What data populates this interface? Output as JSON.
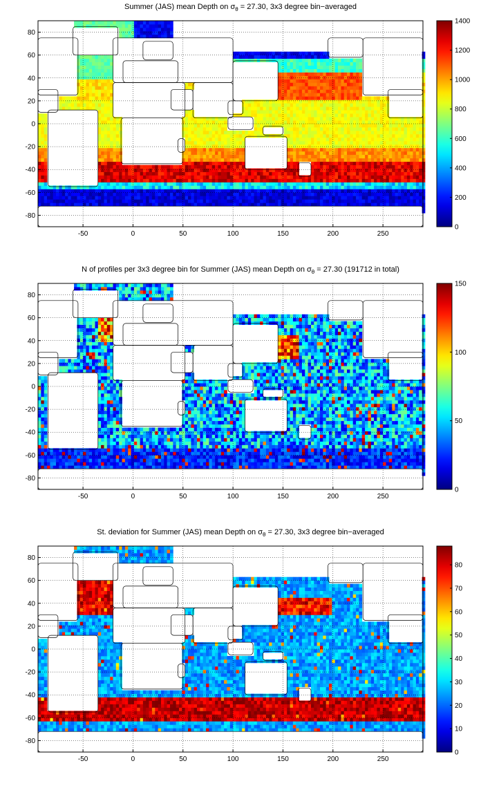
{
  "chart_data": [
    {
      "type": "heatmap",
      "title_prefix": "Summer (JAS) mean Depth on σ",
      "title_sub": "θ",
      "title_suffix": " = 27.30, 3x3 degree bin−averaged",
      "xlim": [
        -95,
        290
      ],
      "ylim": [
        -90,
        90
      ],
      "xticks": [
        -50,
        0,
        50,
        100,
        150,
        200,
        250
      ],
      "yticks": [
        80,
        60,
        40,
        20,
        0,
        -20,
        -40,
        -60,
        -80
      ],
      "colorbar_ticks": [
        1400,
        1200,
        1000,
        800,
        600,
        400,
        200,
        0
      ],
      "clim": [
        0,
        1400
      ],
      "grid": true,
      "colormap": "jet",
      "field": "depth"
    },
    {
      "type": "heatmap",
      "title_prefix": "N of profiles per 3x3 degree bin for Summer (JAS) mean Depth on σ",
      "title_sub": "θ",
      "title_suffix": " = 27.30 (191712 in total)",
      "xlim": [
        -95,
        290
      ],
      "ylim": [
        -90,
        90
      ],
      "xticks": [
        -50,
        0,
        50,
        100,
        150,
        200,
        250
      ],
      "yticks": [
        80,
        60,
        40,
        20,
        0,
        -20,
        -40,
        -60,
        -80
      ],
      "colorbar_ticks": [
        150,
        100,
        50,
        0
      ],
      "clim": [
        0,
        150
      ],
      "grid": true,
      "colormap": "jet",
      "field": "count"
    },
    {
      "type": "heatmap",
      "title_prefix": "St. deviation for Summer (JAS) mean Depth on σ",
      "title_sub": "θ",
      "title_suffix": " = 27.30, 3x3 degree bin−averaged",
      "xlim": [
        -95,
        290
      ],
      "ylim": [
        -90,
        90
      ],
      "xticks": [
        -50,
        0,
        50,
        100,
        150,
        200,
        250
      ],
      "yticks": [
        80,
        60,
        40,
        20,
        0,
        -20,
        -40,
        -60,
        -80
      ],
      "colorbar_ticks": [
        80,
        70,
        60,
        50,
        40,
        30,
        20,
        10,
        0
      ],
      "clim": [
        0,
        88
      ],
      "grid": true,
      "colormap": "jet",
      "field": "std"
    }
  ]
}
